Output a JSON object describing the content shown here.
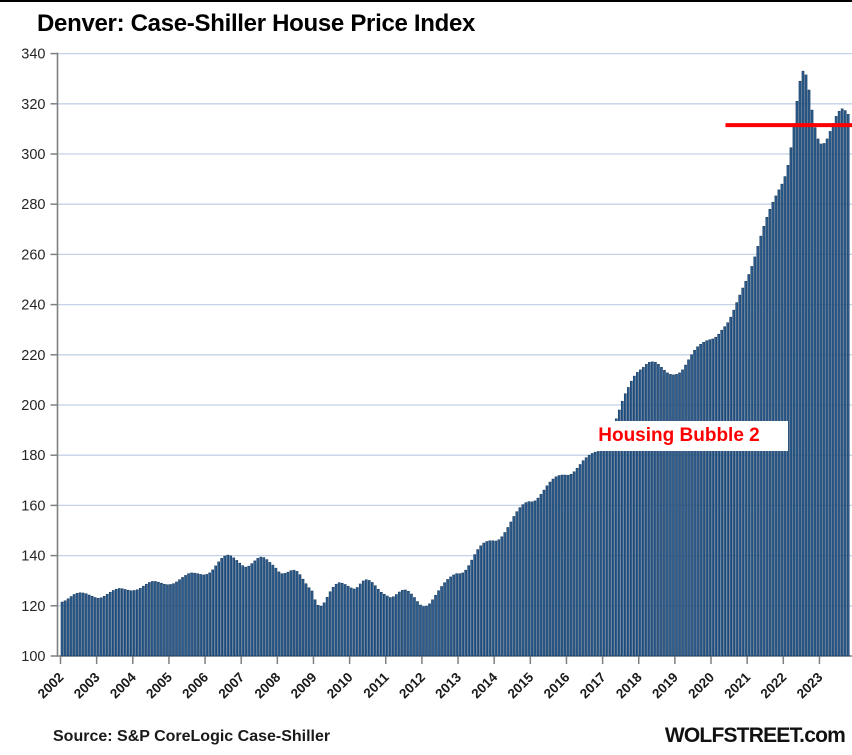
{
  "title": "Denver: Case-Shiller House Price Index",
  "footer": {
    "source": "Source: S&P CoreLogic Case-Shiller",
    "watermark": "WOLFSTREET.com"
  },
  "annotations": {
    "bubble_label": "Housing Bubble 2",
    "red_line": {
      "value": 311.5,
      "x_start_year": 2020.4,
      "x_end_year": 2023.9
    }
  },
  "colors": {
    "bar_fill": "#2d5d8e",
    "bar_stroke": "#17395e",
    "grid": "#c3d2e7",
    "axis": "#808080",
    "accent_red": "#fe0000",
    "text": "#262626"
  },
  "chart_data": {
    "type": "bar",
    "title": "Denver: Case-Shiller House Price Index",
    "x_unit": "month",
    "start": "2002-01",
    "end": "2023-10",
    "ylim": [
      100,
      340
    ],
    "y_tick_step": 20,
    "grid": true,
    "year_ticks": [
      2002,
      2003,
      2004,
      2005,
      2006,
      2007,
      2008,
      2009,
      2010,
      2011,
      2012,
      2013,
      2014,
      2015,
      2016,
      2017,
      2018,
      2019,
      2020,
      2021,
      2022,
      2023
    ],
    "values": [
      121.5,
      122.0,
      122.8,
      123.7,
      124.5,
      125.0,
      125.2,
      125.1,
      124.8,
      124.3,
      123.8,
      123.3,
      123.0,
      123.2,
      123.8,
      124.6,
      125.4,
      126.1,
      126.6,
      126.9,
      126.8,
      126.5,
      126.2,
      126.0,
      126.1,
      126.4,
      127.0,
      127.8,
      128.6,
      129.3,
      129.7,
      129.7,
      129.4,
      129.0,
      128.6,
      128.4,
      128.5,
      128.8,
      129.5,
      130.4,
      131.3,
      132.1,
      132.8,
      133.1,
      133.0,
      132.8,
      132.5,
      132.3,
      132.5,
      133.1,
      134.3,
      135.9,
      137.5,
      138.9,
      139.8,
      140.2,
      139.9,
      139.1,
      138.1,
      137.0,
      136.0,
      135.4,
      135.8,
      136.8,
      137.9,
      138.9,
      139.4,
      139.2,
      138.4,
      137.3,
      136.2,
      135.0,
      133.5,
      132.8,
      132.9,
      133.4,
      134.0,
      134.2,
      133.7,
      132.4,
      130.6,
      128.8,
      127.2,
      125.9,
      122.4,
      120.2,
      119.8,
      121.2,
      123.4,
      125.6,
      127.4,
      128.6,
      129.2,
      129.0,
      128.5,
      127.8,
      127.1,
      126.7,
      127.3,
      128.7,
      129.9,
      130.4,
      130.1,
      129.3,
      128.0,
      126.6,
      125.4,
      124.6,
      123.9,
      123.3,
      123.6,
      124.5,
      125.5,
      126.2,
      126.3,
      125.8,
      124.7,
      123.3,
      121.7,
      120.3,
      119.7,
      119.8,
      120.8,
      122.4,
      124.2,
      126.0,
      127.7,
      129.2,
      130.5,
      131.5,
      132.3,
      132.8,
      132.8,
      133.1,
      134.2,
      136.0,
      138.2,
      140.4,
      142.4,
      143.9,
      145.0,
      145.6,
      145.9,
      145.9,
      145.8,
      146.3,
      147.5,
      149.2,
      151.2,
      153.4,
      155.6,
      157.5,
      159.1,
      160.3,
      161.1,
      161.5,
      161.4,
      161.8,
      162.9,
      164.4,
      166.1,
      167.8,
      169.3,
      170.5,
      171.4,
      171.9,
      172.1,
      172.1,
      172.0,
      172.4,
      173.4,
      174.8,
      176.3,
      177.8,
      179.0,
      180.0,
      180.7,
      181.2,
      181.5,
      181.8,
      182.5,
      184.5,
      187.5,
      191.0,
      194.5,
      198.0,
      201.5,
      204.5,
      207.0,
      209.5,
      211.5,
      213.0,
      214.0,
      215.0,
      216.2,
      217.0,
      217.2,
      217.0,
      216.2,
      215.0,
      213.8,
      212.8,
      212.2,
      212.0,
      212.2,
      212.8,
      214.0,
      215.9,
      218.0,
      220.0,
      221.8,
      223.2,
      224.2,
      225.0,
      225.6,
      226.0,
      226.3,
      227.0,
      228.2,
      229.8,
      231.2,
      232.8,
      235.0,
      237.8,
      240.8,
      243.8,
      246.6,
      249.3,
      252.0,
      255.2,
      259.0,
      263.2,
      267.3,
      271.2,
      274.8,
      278.0,
      280.8,
      283.3,
      285.7,
      288.0,
      291.0,
      295.5,
      302.5,
      311.5,
      321.0,
      329.0,
      333.0,
      331.5,
      325.5,
      317.5,
      310.5,
      306.0,
      304.0,
      304.2,
      306.0,
      309.0,
      312.2,
      315.0,
      317.0,
      318.0,
      317.3,
      315.8
    ]
  }
}
